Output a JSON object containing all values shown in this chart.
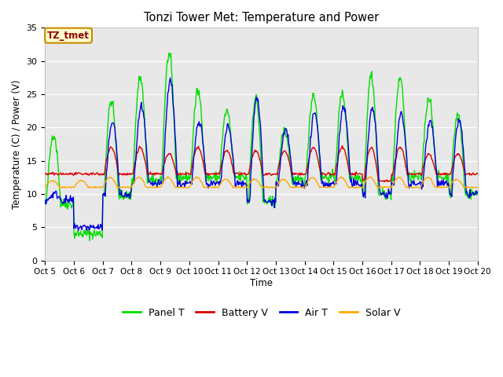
{
  "title": "Tonzi Tower Met: Temperature and Power",
  "ylabel": "Temperature (C) / Power (V)",
  "xlabel": "Time",
  "annotation": "TZ_tmet",
  "ylim": [
    0,
    35
  ],
  "xlim_days": [
    0,
    15
  ],
  "bg_color": "#e8e8e8",
  "legend_entries": [
    "Panel T",
    "Battery V",
    "Air T",
    "Solar V"
  ],
  "legend_colors": [
    "#00dd00",
    "#dd0000",
    "#0000dd",
    "#ffaa00"
  ],
  "xtick_labels": [
    "Oct 5",
    "Oct 6",
    "Oct 7",
    "Oct 8",
    "Oct 9",
    "Oct 10",
    "Oct 11",
    "Oct 12",
    "Oct 13",
    "Oct 14",
    "Oct 15",
    "Oct 16",
    "Oct 17",
    "Oct 18",
    "Oct 19",
    "Oct 20"
  ],
  "ytick_values": [
    0,
    5,
    10,
    15,
    20,
    25,
    30,
    35
  ],
  "panel_peaks": [
    19.0,
    4.0,
    24.0,
    27.5,
    31.0,
    25.5,
    22.5,
    24.5,
    19.5,
    25.0,
    25.0,
    28.0,
    27.5,
    24.5,
    22.0,
    21.5
  ],
  "panel_nights": [
    8.5,
    4.0,
    9.8,
    12.0,
    12.5,
    12.5,
    12.5,
    8.8,
    12.0,
    12.5,
    12.5,
    10.0,
    12.5,
    12.5,
    10.0,
    14.0
  ],
  "air_peaks": [
    10.0,
    5.0,
    21.0,
    23.0,
    27.0,
    21.0,
    20.0,
    24.5,
    19.5,
    22.0,
    23.0,
    23.0,
    22.0,
    21.0,
    21.0,
    21.0
  ],
  "air_nights": [
    9.0,
    5.0,
    9.8,
    11.5,
    11.5,
    11.5,
    11.5,
    8.8,
    11.5,
    11.5,
    11.5,
    10.0,
    11.5,
    11.5,
    10.0,
    13.0
  ],
  "batt_peaks": [
    13.0,
    13.0,
    17.0,
    17.0,
    16.0,
    17.0,
    16.5,
    16.5,
    16.5,
    17.0,
    17.0,
    17.0,
    17.0,
    16.0,
    16.0,
    16.0
  ],
  "batt_nights": [
    13.0,
    13.0,
    13.0,
    13.0,
    13.0,
    13.0,
    13.0,
    13.0,
    13.0,
    13.0,
    13.0,
    12.0,
    13.0,
    13.0,
    13.0,
    13.0
  ],
  "solar_peaks": [
    12.0,
    12.0,
    12.5,
    12.5,
    12.5,
    12.5,
    12.2,
    12.2,
    12.2,
    12.5,
    12.5,
    12.5,
    12.5,
    12.5,
    12.2,
    12.5
  ],
  "solar_nights": [
    11.0,
    11.0,
    11.0,
    11.0,
    11.0,
    11.0,
    11.0,
    11.0,
    11.0,
    11.0,
    11.0,
    11.0,
    11.0,
    11.0,
    11.0,
    11.0
  ]
}
